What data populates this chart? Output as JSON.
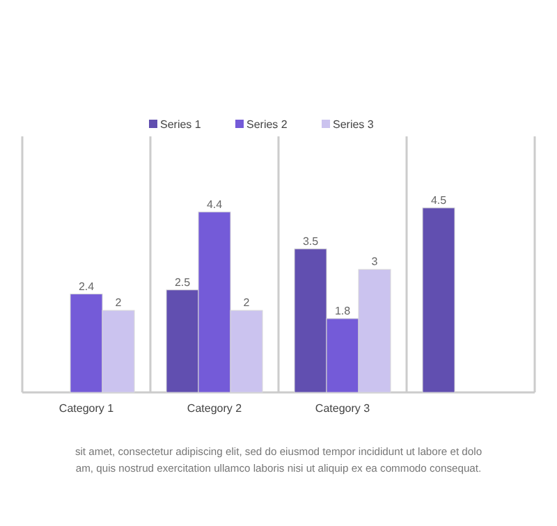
{
  "chart_data": {
    "type": "bar",
    "categories": [
      "Category 1",
      "Category 2",
      "Category 3",
      null
    ],
    "series": [
      {
        "name": "Series 1",
        "color": "#614fb0",
        "values": [
          null,
          2.5,
          3.5,
          4.5
        ]
      },
      {
        "name": "Series 2",
        "color": "#745bd8",
        "values": [
          2.4,
          4.4,
          1.8,
          null
        ]
      },
      {
        "name": "Series 3",
        "color": "#cbc3ef",
        "values": [
          2,
          2,
          3,
          null
        ]
      }
    ],
    "data_labels": true,
    "legend": "top",
    "annotations": [
      "sit amet, consectetur adipiscing elit, sed do eiusmod tempor incididunt ut labore et dolo",
      "am, quis nostrud exercitation ullamco laboris nisi ut aliquip ex ea commodo consequat."
    ]
  }
}
